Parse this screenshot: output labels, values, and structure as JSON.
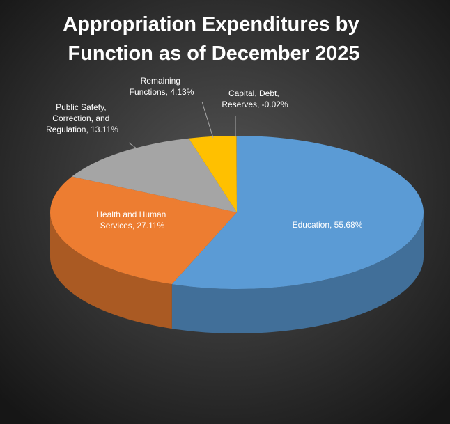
{
  "chart_data": {
    "type": "pie3d",
    "title": "Appropriation Expenditures by Function as of December 2025",
    "values": [
      55.68,
      27.11,
      13.11,
      4.13,
      -0.02
    ],
    "value_labels": [
      "Education, 55.68%",
      "Health and Human Services, 27.11%",
      "Public Safety, Correction, and Regulation, 13.11%",
      "Remaining Functions, 4.13%",
      "Capital, Debt, Reserves, -0.02%"
    ],
    "colors": [
      "#5b9bd5",
      "#ed7d31",
      "#a5a5a5",
      "#ffc000",
      "#4472c4"
    ]
  }
}
